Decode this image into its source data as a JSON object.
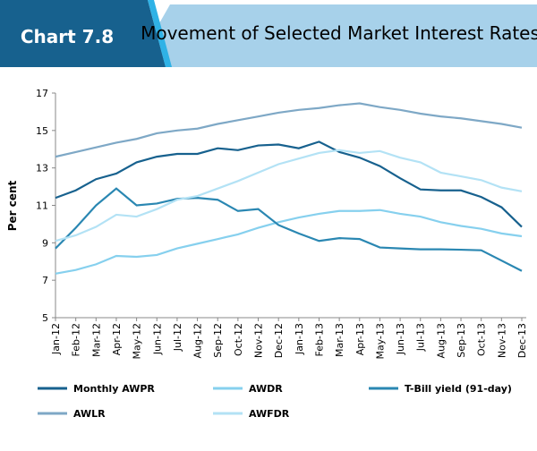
{
  "header": {
    "label": "Chart 7.8"
  },
  "chart_data": {
    "type": "line",
    "title": "Movement of Selected Market Interest Rates",
    "y_label": "Per cent",
    "categories": [
      "Jan-12",
      "Feb-12",
      "Mar-12",
      "Apr-12",
      "May-12",
      "Jun-12",
      "Jul-12",
      "Aug-12",
      "Sep-12",
      "Oct-12",
      "Nov-12",
      "Dec-12",
      "Jan-13",
      "Feb-13",
      "Mar-13",
      "Apr-13",
      "May-13",
      "Jun-13",
      "Jul-13",
      "Aug-13",
      "Sep-13",
      "Oct-13",
      "Nov-13",
      "Dec-13"
    ],
    "series": [
      {
        "name": "Monthly AWPR",
        "color": "#17618e",
        "values": [
          11.4,
          11.8,
          12.4,
          12.7,
          13.3,
          13.6,
          13.75,
          13.75,
          14.05,
          13.95,
          14.2,
          14.25,
          14.05,
          14.4,
          13.85,
          13.55,
          13.1,
          12.45,
          11.85,
          11.8,
          11.8,
          11.45,
          10.9,
          9.85
        ]
      },
      {
        "name": "AWDR",
        "color": "#86d0ee",
        "values": [
          7.35,
          7.55,
          7.85,
          8.3,
          8.25,
          8.35,
          8.7,
          8.95,
          9.2,
          9.45,
          9.8,
          10.1,
          10.35,
          10.55,
          10.7,
          10.7,
          10.75,
          10.55,
          10.4,
          10.1,
          9.9,
          9.75,
          9.5,
          9.35
        ]
      },
      {
        "name": "T-Bill yield (91-day)",
        "color": "#2a87b2",
        "values": [
          8.7,
          9.8,
          11.0,
          11.9,
          11.0,
          11.1,
          11.35,
          11.4,
          11.3,
          10.7,
          10.8,
          9.95,
          9.5,
          9.1,
          9.25,
          9.2,
          8.75,
          8.7,
          8.65,
          8.65,
          8.63,
          8.6,
          8.05,
          7.5
        ]
      },
      {
        "name": "AWLR",
        "color": "#7ea8c6",
        "values": [
          13.6,
          13.85,
          14.1,
          14.35,
          14.55,
          14.85,
          15.0,
          15.1,
          15.35,
          15.55,
          15.75,
          15.95,
          16.1,
          16.2,
          16.35,
          16.45,
          16.25,
          16.1,
          15.9,
          15.75,
          15.65,
          15.5,
          15.35,
          15.15
        ]
      },
      {
        "name": "AWFDR",
        "color": "#b3e2f5",
        "values": [
          9.1,
          9.4,
          9.85,
          10.5,
          10.4,
          10.8,
          11.3,
          11.5,
          11.9,
          12.3,
          12.75,
          13.2,
          13.5,
          13.8,
          13.95,
          13.8,
          13.9,
          13.55,
          13.3,
          12.75,
          12.55,
          12.35,
          11.95,
          11.75
        ]
      }
    ],
    "ylim": [
      5,
      17
    ],
    "yticks": [
      5,
      7,
      9,
      11,
      13,
      15,
      17
    ],
    "grid": false
  }
}
